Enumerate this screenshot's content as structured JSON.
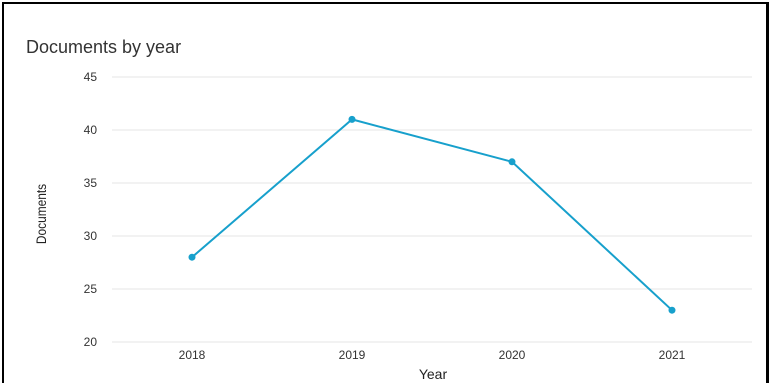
{
  "chart_data": {
    "type": "line",
    "title": "Documents by year",
    "xlabel": "Year",
    "ylabel": "Documents",
    "categories": [
      "2018",
      "2019",
      "2020",
      "2021"
    ],
    "series": [
      {
        "values": [
          28,
          41,
          37,
          23
        ]
      }
    ],
    "ylim": [
      20,
      45
    ],
    "yticks": [
      20,
      25,
      30,
      35,
      40,
      45
    ],
    "grid": true,
    "legend": "none",
    "colors": {
      "line": "#17a0cc",
      "grid": "#e6e6e6",
      "tick_text": "#333333",
      "axis_label": "#222222"
    }
  }
}
